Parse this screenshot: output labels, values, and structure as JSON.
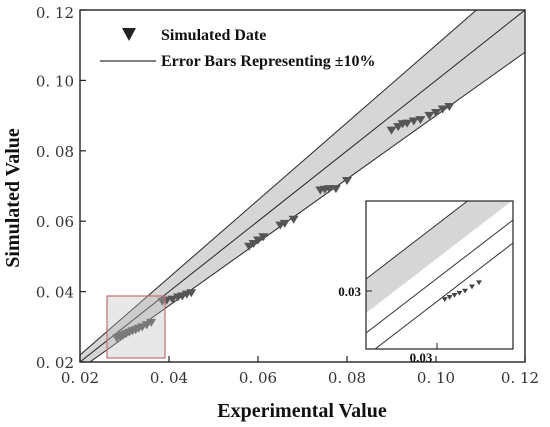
{
  "chart_data": {
    "type": "scatter",
    "xlabel": "Experimental Value",
    "ylabel": "Simulated Value",
    "xlim": [
      0.02,
      0.12
    ],
    "ylim": [
      0.02,
      0.12
    ],
    "x_ticks": [
      "0. 02",
      "0. 04",
      "0. 06",
      "0. 08",
      "0. 10",
      "0. 12"
    ],
    "y_ticks": [
      "0. 02",
      "0. 04",
      "0. 06",
      "0. 08",
      "0. 10",
      "0. 12"
    ],
    "x_tick_values": [
      0.02,
      0.04,
      0.06,
      0.08,
      0.1,
      0.12
    ],
    "y_tick_values": [
      0.02,
      0.04,
      0.06,
      0.08,
      0.1,
      0.12
    ],
    "grid": false,
    "legend_position": "top-left",
    "band_percent": 10,
    "legend": {
      "marker_label": "Simulated Date",
      "line_label": "Error Bars Representing ±10%"
    },
    "marker": "triangle-down",
    "colors": {
      "marker": "#555555",
      "band": "#d6d6d6",
      "line": "#333333",
      "highlight": "#c07070"
    },
    "series": [
      {
        "name": "Simulated Date",
        "points": [
          [
            0.0283,
            0.0268
          ],
          [
            0.029,
            0.0272
          ],
          [
            0.0297,
            0.0276
          ],
          [
            0.0304,
            0.028
          ],
          [
            0.0311,
            0.0284
          ],
          [
            0.0318,
            0.0288
          ],
          [
            0.0325,
            0.0291
          ],
          [
            0.0332,
            0.0295
          ],
          [
            0.034,
            0.0299
          ],
          [
            0.035,
            0.0305
          ],
          [
            0.036,
            0.0312
          ],
          [
            0.0385,
            0.0372
          ],
          [
            0.0395,
            0.0375
          ],
          [
            0.0408,
            0.0378
          ],
          [
            0.042,
            0.0384
          ],
          [
            0.043,
            0.0387
          ],
          [
            0.044,
            0.0392
          ],
          [
            0.045,
            0.0396
          ],
          [
            0.058,
            0.0528
          ],
          [
            0.059,
            0.0536
          ],
          [
            0.06,
            0.0546
          ],
          [
            0.0612,
            0.0555
          ],
          [
            0.065,
            0.0588
          ],
          [
            0.066,
            0.0593
          ],
          [
            0.068,
            0.0605
          ],
          [
            0.074,
            0.0688
          ],
          [
            0.075,
            0.069
          ],
          [
            0.076,
            0.0692
          ],
          [
            0.0775,
            0.0692
          ],
          [
            0.08,
            0.0715
          ],
          [
            0.09,
            0.0858
          ],
          [
            0.0915,
            0.0868
          ],
          [
            0.0925,
            0.0876
          ],
          [
            0.0935,
            0.0878
          ],
          [
            0.095,
            0.0884
          ],
          [
            0.0965,
            0.0888
          ],
          [
            0.0985,
            0.09
          ],
          [
            0.1,
            0.0908
          ],
          [
            0.1015,
            0.0918
          ],
          [
            0.103,
            0.0925
          ]
        ]
      }
    ],
    "inset": {
      "tick_label_x": "0.03",
      "tick_label_y": "0.03",
      "points": [
        [
          0.0311,
          0.0288
        ],
        [
          0.0318,
          0.0291
        ],
        [
          0.0325,
          0.0294
        ],
        [
          0.0332,
          0.0297
        ],
        [
          0.034,
          0.03
        ],
        [
          0.035,
          0.0306
        ],
        [
          0.036,
          0.0312
        ]
      ]
    }
  }
}
